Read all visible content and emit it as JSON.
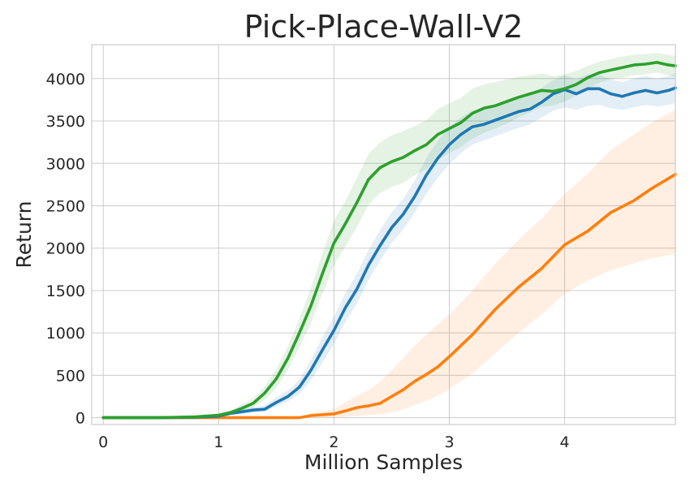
{
  "chart_data": {
    "type": "line",
    "title": "Pick-Place-Wall-V2",
    "xlabel": "Million Samples",
    "ylabel": "Return",
    "xlim": [
      -0.1,
      4.96
    ],
    "ylim": [
      -80,
      4400
    ],
    "xticks": [
      0,
      1,
      2,
      3,
      4
    ],
    "yticks": [
      0,
      500,
      1000,
      1500,
      2000,
      2500,
      3000,
      3500,
      4000
    ],
    "grid": true,
    "series": [
      {
        "color": "#ff7f0e",
        "x": [
          0,
          0.5,
          1.0,
          1.5,
          1.7,
          1.8,
          2.0,
          2.1,
          2.2,
          2.3,
          2.4,
          2.5,
          2.6,
          2.7,
          2.8,
          2.9,
          3.0,
          3.2,
          3.4,
          3.6,
          3.8,
          3.9,
          4.0,
          4.2,
          4.4,
          4.6,
          4.75,
          4.96
        ],
        "y": [
          0,
          0,
          0,
          0,
          0,
          25,
          45,
          80,
          120,
          140,
          170,
          250,
          330,
          430,
          510,
          600,
          720,
          980,
          1280,
          1540,
          1760,
          1900,
          2040,
          2200,
          2420,
          2560,
          2700,
          2870
        ],
        "lower": [
          0,
          0,
          0,
          0,
          0,
          0,
          0,
          10,
          20,
          30,
          40,
          60,
          100,
          150,
          200,
          260,
          340,
          520,
          760,
          1000,
          1220,
          1340,
          1460,
          1620,
          1740,
          1820,
          1880,
          1930
        ],
        "upper": [
          0,
          0,
          0,
          0,
          0,
          50,
          100,
          180,
          260,
          330,
          420,
          560,
          700,
          850,
          980,
          1100,
          1220,
          1500,
          1820,
          2100,
          2350,
          2500,
          2640,
          2880,
          3160,
          3340,
          3480,
          3630
        ]
      },
      {
        "color": "#1f77b4",
        "x": [
          0,
          0.5,
          0.8,
          1.0,
          1.1,
          1.2,
          1.3,
          1.4,
          1.5,
          1.6,
          1.7,
          1.8,
          1.9,
          2.0,
          2.1,
          2.2,
          2.3,
          2.4,
          2.5,
          2.6,
          2.7,
          2.8,
          2.9,
          3.0,
          3.1,
          3.2,
          3.3,
          3.4,
          3.5,
          3.6,
          3.7,
          3.8,
          3.9,
          4.0,
          4.1,
          4.2,
          4.3,
          4.4,
          4.5,
          4.6,
          4.7,
          4.8,
          4.9,
          4.96
        ],
        "y": [
          0,
          0,
          5,
          20,
          50,
          70,
          90,
          100,
          180,
          250,
          360,
          560,
          800,
          1030,
          1300,
          1520,
          1800,
          2030,
          2240,
          2400,
          2610,
          2860,
          3060,
          3220,
          3340,
          3430,
          3460,
          3510,
          3560,
          3610,
          3640,
          3720,
          3820,
          3870,
          3820,
          3880,
          3880,
          3820,
          3790,
          3830,
          3860,
          3830,
          3860,
          3890
        ],
        "lower": [
          0,
          0,
          0,
          10,
          30,
          45,
          60,
          70,
          130,
          190,
          280,
          440,
          650,
          870,
          1130,
          1350,
          1620,
          1850,
          2060,
          2220,
          2420,
          2640,
          2830,
          2990,
          3120,
          3220,
          3270,
          3320,
          3370,
          3420,
          3460,
          3540,
          3620,
          3660,
          3630,
          3680,
          3690,
          3650,
          3630,
          3660,
          3690,
          3670,
          3690,
          3710
        ],
        "upper": [
          0,
          0,
          10,
          35,
          70,
          95,
          125,
          140,
          240,
          320,
          450,
          680,
          950,
          1190,
          1470,
          1700,
          1980,
          2210,
          2420,
          2580,
          2800,
          3060,
          3270,
          3430,
          3540,
          3620,
          3650,
          3690,
          3740,
          3790,
          3820,
          3890,
          3980,
          4040,
          3990,
          4050,
          4050,
          3990,
          3960,
          4000,
          4030,
          4000,
          4030,
          4060
        ]
      },
      {
        "color": "#2ca02c",
        "x": [
          0,
          0.5,
          0.8,
          1.0,
          1.1,
          1.2,
          1.3,
          1.4,
          1.5,
          1.6,
          1.7,
          1.8,
          1.9,
          2.0,
          2.1,
          2.2,
          2.3,
          2.4,
          2.5,
          2.6,
          2.7,
          2.8,
          2.9,
          3.0,
          3.1,
          3.2,
          3.3,
          3.4,
          3.5,
          3.6,
          3.7,
          3.8,
          3.9,
          4.0,
          4.1,
          4.2,
          4.3,
          4.4,
          4.5,
          4.6,
          4.7,
          4.8,
          4.9,
          4.96
        ],
        "y": [
          0,
          0,
          10,
          30,
          60,
          110,
          170,
          290,
          460,
          700,
          1000,
          1320,
          1700,
          2060,
          2290,
          2540,
          2810,
          2950,
          3020,
          3070,
          3150,
          3220,
          3340,
          3410,
          3480,
          3590,
          3650,
          3680,
          3730,
          3780,
          3820,
          3860,
          3850,
          3880,
          3930,
          4010,
          4070,
          4100,
          4130,
          4160,
          4170,
          4190,
          4160,
          4150
        ],
        "lower": [
          0,
          0,
          0,
          15,
          35,
          70,
          120,
          210,
          350,
          560,
          830,
          1110,
          1460,
          1800,
          2020,
          2250,
          2510,
          2650,
          2720,
          2770,
          2860,
          2930,
          3040,
          3120,
          3190,
          3290,
          3360,
          3410,
          3470,
          3540,
          3600,
          3670,
          3680,
          3730,
          3800,
          3880,
          3950,
          3990,
          4010,
          4040,
          4050,
          4070,
          4040,
          4020
        ],
        "upper": [
          0,
          0,
          20,
          45,
          90,
          150,
          230,
          370,
          570,
          840,
          1170,
          1530,
          1940,
          2320,
          2560,
          2830,
          3110,
          3250,
          3330,
          3380,
          3440,
          3510,
          3640,
          3710,
          3770,
          3880,
          3930,
          3960,
          3990,
          4020,
          4040,
          4060,
          4030,
          4050,
          4090,
          4150,
          4200,
          4230,
          4260,
          4280,
          4290,
          4300,
          4280,
          4270
        ]
      }
    ]
  }
}
